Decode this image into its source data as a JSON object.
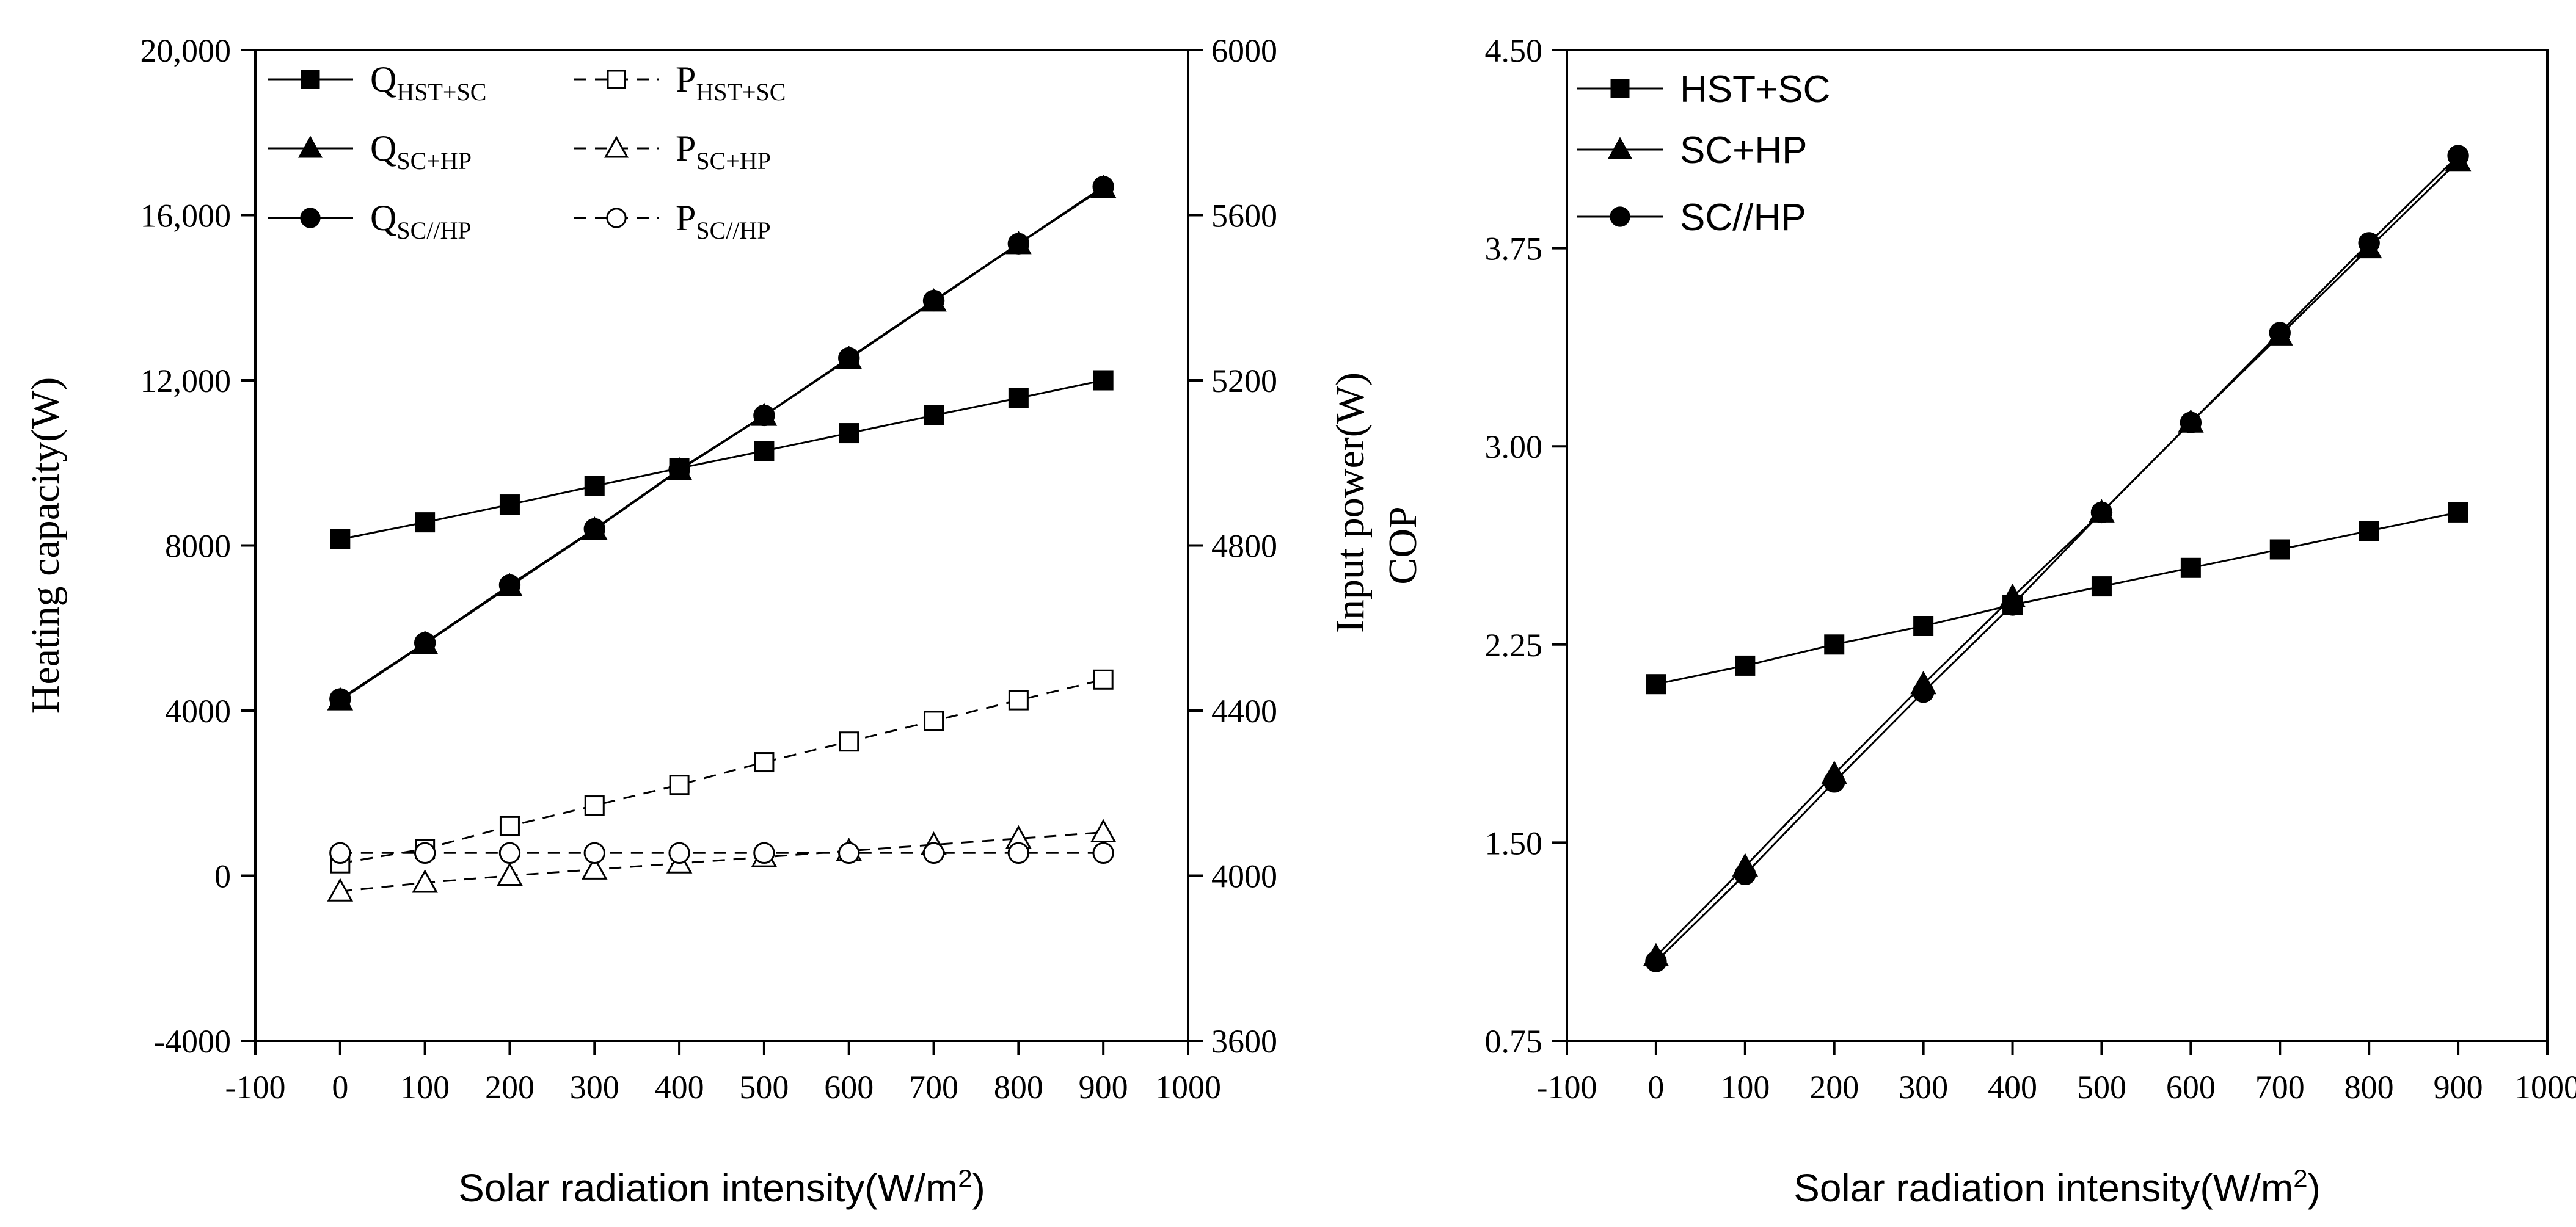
{
  "chart_data": [
    {
      "type": "line",
      "xlabel": "Solar radiation intensity(W/m",
      "xlabel_sup": "2",
      "xlabel_tail": ")",
      "ylabel_left": "Heating capacity(W)",
      "ylabel_right": "Input power(W)",
      "xlim": [
        -100,
        1000
      ],
      "ylim_left": [
        -4000,
        20000
      ],
      "ylim_right": [
        3600,
        6000
      ],
      "x_ticks": [
        -100,
        0,
        100,
        200,
        300,
        400,
        500,
        600,
        700,
        800,
        900,
        1000
      ],
      "y_ticks_left": [
        -4000,
        0,
        4000,
        8000,
        12000,
        16000,
        20000
      ],
      "y_tick_labels_left": [
        "-4000",
        "0",
        "4000",
        "8000",
        "12,000",
        "16,000",
        "20,000"
      ],
      "y_ticks_right": [
        3600,
        4000,
        4400,
        4800,
        5200,
        5600,
        6000
      ],
      "y_tick_labels_right": [
        "3600",
        "4000",
        "4400",
        "4800",
        "5200",
        "5600",
        "6000"
      ],
      "x": [
        0,
        100,
        200,
        300,
        400,
        500,
        600,
        700,
        800,
        900
      ],
      "series": [
        {
          "name": "Q",
          "sub": "HST+SC",
          "axis": "left",
          "marker": "square",
          "filled": true,
          "dashed": false,
          "values": [
            8150,
            8560,
            8990,
            9440,
            9870,
            10290,
            10720,
            11150,
            11570,
            12000
          ]
        },
        {
          "name": "Q",
          "sub": "SC+HP",
          "axis": "left",
          "marker": "triangle",
          "filled": true,
          "dashed": false,
          "values": [
            4250,
            5620,
            7010,
            8380,
            9820,
            11140,
            12520,
            13910,
            15300,
            16660
          ]
        },
        {
          "name": "Q",
          "sub": "SC//HP",
          "axis": "left",
          "marker": "circle",
          "filled": true,
          "dashed": false,
          "values": [
            4280,
            5640,
            7040,
            8400,
            9840,
            11150,
            12540,
            13930,
            15310,
            16690
          ]
        },
        {
          "name": "P",
          "sub": "HST+SC",
          "axis": "right",
          "marker": "square",
          "filled": false,
          "dashed": true,
          "values": [
            4030,
            4065,
            4120,
            4170,
            4220,
            4275,
            4325,
            4375,
            4425,
            4475
          ]
        },
        {
          "name": "P",
          "sub": "SC+HP",
          "axis": "right",
          "marker": "triangle",
          "filled": false,
          "dashed": true,
          "values": [
            3962,
            3983,
            4000,
            4015,
            4030,
            4045,
            4060,
            4075,
            4090,
            4105
          ]
        },
        {
          "name": "P",
          "sub": "SC//HP",
          "axis": "right",
          "marker": "circle",
          "filled": false,
          "dashed": true,
          "values": [
            4055,
            4055,
            4055,
            4055,
            4055,
            4055,
            4055,
            4055,
            4055,
            4055
          ]
        }
      ]
    },
    {
      "type": "line",
      "xlabel": "Solar radiation intensity(W/m",
      "xlabel_sup": "2",
      "xlabel_tail": ")",
      "ylabel": "COP",
      "xlim": [
        -100,
        1000
      ],
      "ylim": [
        0.75,
        4.5
      ],
      "x_ticks": [
        -100,
        0,
        100,
        200,
        300,
        400,
        500,
        600,
        700,
        800,
        900,
        1000
      ],
      "y_ticks": [
        0.75,
        1.5,
        2.25,
        3.0,
        3.75,
        4.5
      ],
      "y_tick_labels": [
        "0.75",
        "1.50",
        "2.25",
        "3.00",
        "3.75",
        "4.50"
      ],
      "x": [
        0,
        100,
        200,
        300,
        400,
        500,
        600,
        700,
        800,
        900
      ],
      "series": [
        {
          "name": "HST+SC",
          "marker": "square",
          "filled": true,
          "values": [
            2.1,
            2.17,
            2.25,
            2.32,
            2.4,
            2.47,
            2.54,
            2.61,
            2.68,
            2.75
          ]
        },
        {
          "name": "SC+HP",
          "marker": "triangle",
          "filled": true,
          "values": [
            1.07,
            1.41,
            1.76,
            2.1,
            2.43,
            2.75,
            3.09,
            3.42,
            3.75,
            4.08
          ]
        },
        {
          "name": "SC//HP",
          "marker": "circle",
          "filled": true,
          "values": [
            1.05,
            1.38,
            1.73,
            2.07,
            2.4,
            2.75,
            3.09,
            3.43,
            3.77,
            4.1
          ]
        }
      ]
    }
  ]
}
